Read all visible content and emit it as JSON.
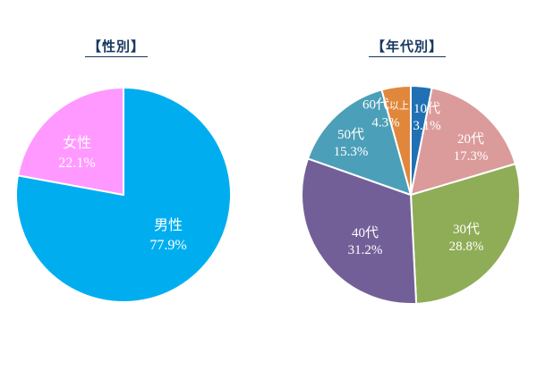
{
  "page": {
    "background_color": "#FFFFFF"
  },
  "chart_data": [
    {
      "type": "pie",
      "title": "【性別】",
      "legend": "none",
      "labels_inside": true,
      "categories": [
        "男性",
        "女性"
      ],
      "values": [
        77.9,
        22.1
      ],
      "slices": [
        {
          "name": "男性",
          "value": 77.9,
          "display": "77.9%",
          "color": "#00AEEF",
          "label_offset": [
            50,
            46
          ]
        },
        {
          "name": "女性",
          "value": 22.1,
          "display": "22.1%",
          "color": "#FF99FF",
          "label_offset": [
            -52,
            -46
          ]
        }
      ],
      "layout": {
        "center": [
          138,
          218
        ],
        "radius": 120,
        "start_angle_deg": 0,
        "clockwise": true,
        "label_color": "#FFFFFF"
      }
    },
    {
      "type": "pie",
      "title": "【年代別】",
      "legend": "none",
      "labels_inside": true,
      "categories": [
        "10代",
        "20代",
        "30代",
        "40代",
        "50代",
        "60代以上"
      ],
      "values": [
        3.1,
        17.3,
        28.8,
        31.2,
        15.3,
        4.3
      ],
      "slices": [
        {
          "name": "10代",
          "value": 3.1,
          "display": "3.1%",
          "color": "#2070B4",
          "label_offset": [
            18,
            -86
          ]
        },
        {
          "name": "20代",
          "value": 17.3,
          "display": "17.3%",
          "color": "#DC9B9B",
          "label_offset": [
            67,
            -52
          ]
        },
        {
          "name": "30代",
          "value": 28.8,
          "display": "28.8%",
          "color": "#8FAD56",
          "label_offset": [
            62,
            49
          ]
        },
        {
          "name": "40代",
          "value": 31.2,
          "display": "31.2%",
          "color": "#735F98",
          "label_offset": [
            -51,
            53
          ]
        },
        {
          "name": "50代",
          "value": 15.3,
          "display": "15.3%",
          "color": "#4C9FB8",
          "label_offset": [
            -67,
            -57
          ]
        },
        {
          "name": "60代",
          "name_suffix": "以上",
          "value": 4.3,
          "display": "4.3%",
          "color": "#E0873C",
          "label_offset": [
            -28,
            -90
          ]
        }
      ],
      "layout": {
        "center": [
          459,
          218
        ],
        "radius": 122,
        "start_angle_deg": 0,
        "clockwise": true,
        "label_color": "#FFFFFF"
      }
    }
  ],
  "title_color": "#17375E"
}
